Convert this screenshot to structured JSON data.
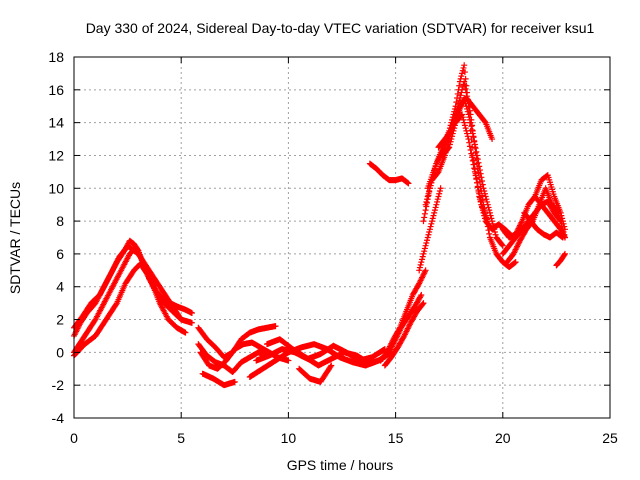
{
  "chart_data": {
    "type": "scatter",
    "title": "Day 330 of 2024, Sidereal Day-to-day VTEC variation (SDTVAR) for receiver ksu1",
    "xlabel": "GPS time / hours",
    "ylabel": "SDTVAR / TECUs",
    "xlim": [
      0,
      25
    ],
    "ylim": [
      -4,
      18
    ],
    "x_ticks": [
      0,
      5,
      10,
      15,
      20,
      25
    ],
    "y_ticks": [
      -4,
      -2,
      0,
      2,
      4,
      6,
      8,
      10,
      12,
      14,
      16,
      18
    ],
    "grid": true,
    "marker": "+",
    "series": [
      {
        "name": "SDTVAR",
        "color": "#ff0000",
        "tracks": [
          {
            "x": [
              0.0,
              0.3,
              0.6,
              1.0,
              1.4,
              1.8,
              2.1,
              2.4,
              2.6,
              2.8,
              3.0,
              3.2,
              3.5,
              3.8,
              4.1,
              4.5,
              4.8,
              5.2,
              5.5
            ],
            "y": [
              1.0,
              1.8,
              2.4,
              3.0,
              4.0,
              5.0,
              5.8,
              6.3,
              6.8,
              6.6,
              6.2,
              5.5,
              4.6,
              3.8,
              3.3,
              3.0,
              2.8,
              2.6,
              2.4
            ]
          },
          {
            "x": [
              0.0,
              0.3,
              0.6,
              1.0,
              1.4,
              1.8,
              2.2,
              2.6,
              2.9,
              3.2,
              3.5,
              3.8,
              4.2,
              4.6,
              5.0,
              5.5
            ],
            "y": [
              0.0,
              0.6,
              1.2,
              2.0,
              3.0,
              4.0,
              5.0,
              6.0,
              6.4,
              5.5,
              4.5,
              3.8,
              3.0,
              2.5,
              2.0,
              1.8
            ]
          },
          {
            "x": [
              0.0,
              0.5,
              1.0,
              1.5,
              2.0,
              2.4,
              2.8,
              3.1,
              3.4,
              3.7,
              4.0,
              4.4,
              4.8,
              5.2
            ],
            "y": [
              -0.2,
              0.5,
              1.0,
              2.0,
              3.0,
              4.2,
              5.0,
              5.4,
              4.8,
              4.0,
              3.0,
              2.0,
              1.5,
              1.2
            ]
          },
          {
            "x": [
              0.0,
              0.4,
              0.8,
              1.2,
              1.6,
              2.0,
              2.5,
              3.0,
              3.5,
              4.0,
              4.5,
              5.0
            ],
            "y": [
              1.5,
              2.2,
              3.0,
              3.5,
              4.5,
              5.5,
              6.5,
              6.0,
              5.0,
              4.0,
              3.0,
              2.0
            ]
          },
          {
            "x": [
              5.8,
              6.2,
              6.6,
              7.0,
              7.4,
              7.8,
              8.2,
              8.6,
              9.0,
              9.4
            ],
            "y": [
              1.5,
              0.8,
              0.3,
              -0.3,
              0.0,
              0.8,
              1.2,
              1.4,
              1.5,
              1.6
            ]
          },
          {
            "x": [
              5.8,
              6.2,
              6.6,
              7.0,
              7.4,
              7.8,
              8.2,
              8.6,
              9.0
            ],
            "y": [
              0.5,
              -0.2,
              -0.6,
              -0.8,
              -1.2,
              -0.6,
              -0.3,
              0.0,
              -0.2
            ]
          },
          {
            "x": [
              5.9,
              6.3,
              6.7,
              7.1,
              7.5,
              7.9,
              8.3,
              8.7,
              9.1,
              9.5,
              10.0
            ],
            "y": [
              0.0,
              -0.8,
              -1.0,
              -0.5,
              0.2,
              0.5,
              0.6,
              0.3,
              0.0,
              -0.3,
              -0.5
            ]
          },
          {
            "x": [
              6.0,
              6.5,
              7.0,
              7.5
            ],
            "y": [
              -1.3,
              -1.6,
              -2.0,
              -1.8
            ]
          },
          {
            "x": [
              8.2,
              8.8,
              9.4,
              10.0,
              10.6,
              11.2,
              11.8,
              12.4,
              13.0,
              13.6,
              14.2,
              14.8
            ],
            "y": [
              -1.5,
              -1.0,
              -0.5,
              0.0,
              0.3,
              0.5,
              0.2,
              -0.3,
              -0.6,
              -0.8,
              -0.5,
              0.0
            ]
          },
          {
            "x": [
              8.5,
              9.1,
              9.7,
              10.3,
              10.9,
              11.5,
              12.1,
              12.7,
              13.3,
              13.9,
              14.5
            ],
            "y": [
              -0.5,
              -0.2,
              0.2,
              0.0,
              -0.4,
              -0.1,
              0.4,
              0.0,
              -0.5,
              -0.3,
              0.2
            ]
          },
          {
            "x": [
              9.0,
              9.6,
              10.2,
              10.8,
              11.4,
              12.0,
              12.6,
              13.2,
              13.8,
              14.4
            ],
            "y": [
              0.5,
              0.8,
              0.2,
              -0.3,
              -0.8,
              -0.4,
              0.0,
              -0.2,
              -0.7,
              -0.4
            ]
          },
          {
            "x": [
              10.5,
              11.0,
              11.5,
              12.0
            ],
            "y": [
              -1.0,
              -1.6,
              -1.8,
              -0.8
            ]
          },
          {
            "x": [
              14.3,
              14.6,
              14.9,
              15.2,
              15.5,
              15.8,
              16.1,
              16.4
            ],
            "y": [
              -0.5,
              0.0,
              0.8,
              1.5,
              2.5,
              3.5,
              4.2,
              5.0
            ]
          },
          {
            "x": [
              14.5,
              14.8,
              15.1,
              15.4,
              15.7,
              16.0,
              16.3
            ],
            "y": [
              -0.8,
              -0.3,
              0.3,
              1.0,
              1.8,
              2.5,
              3.0
            ]
          },
          {
            "x": [
              14.7,
              15.0,
              15.3,
              15.6,
              15.9,
              16.2
            ],
            "y": [
              0.0,
              0.8,
              1.6,
              2.2,
              2.8,
              3.5
            ]
          },
          {
            "x": [
              13.8,
              14.1,
              14.4,
              14.7,
              15.0,
              15.3,
              15.6
            ],
            "y": [
              11.5,
              11.2,
              10.8,
              10.5,
              10.5,
              10.6,
              10.3
            ]
          },
          {
            "x": [
              16.1,
              16.3,
              16.5,
              16.7,
              16.9,
              17.1
            ],
            "y": [
              5.0,
              6.0,
              7.0,
              8.0,
              9.0,
              10.0
            ]
          },
          {
            "x": [
              16.3,
              16.6,
              16.9,
              17.2,
              17.5,
              17.8,
              18.0,
              18.2,
              18.4,
              18.6,
              18.9,
              19.2,
              19.5,
              19.8,
              20.1,
              20.5
            ],
            "y": [
              8.0,
              10.0,
              11.5,
              12.5,
              13.5,
              15.0,
              16.5,
              17.5,
              15.0,
              12.0,
              9.5,
              8.0,
              7.5,
              7.8,
              7.5,
              7.0
            ]
          },
          {
            "x": [
              16.4,
              16.7,
              17.0,
              17.3,
              17.6,
              17.9,
              18.2,
              18.5,
              18.8,
              19.1,
              19.4,
              19.7,
              20.0,
              20.3,
              20.6
            ],
            "y": [
              9.0,
              10.5,
              11.0,
              12.0,
              13.5,
              15.0,
              16.5,
              14.5,
              11.5,
              9.0,
              7.0,
              6.0,
              5.5,
              5.2,
              5.5
            ]
          },
          {
            "x": [
              16.5,
              16.9,
              17.3,
              17.7,
              18.0,
              18.3,
              18.6,
              18.9,
              19.2,
              19.5
            ],
            "y": [
              10.0,
              11.5,
              12.5,
              14.0,
              15.0,
              15.5,
              15.0,
              14.5,
              14.0,
              13.0
            ]
          },
          {
            "x": [
              17.0,
              17.3,
              17.6,
              17.9,
              18.2,
              18.5,
              18.8,
              19.1,
              19.4,
              19.7,
              20.0
            ],
            "y": [
              12.5,
              13.0,
              13.5,
              14.5,
              15.5,
              14.0,
              12.0,
              10.0,
              8.5,
              7.0,
              6.5
            ]
          },
          {
            "x": [
              17.2,
              17.5,
              17.8,
              18.1,
              18.4,
              18.7,
              19.0,
              19.3
            ],
            "y": [
              12.0,
              12.5,
              14.0,
              14.5,
              13.0,
              11.0,
              9.0,
              8.0
            ]
          },
          {
            "x": [
              20.0,
              20.3,
              20.6,
              20.9,
              21.2,
              21.5,
              21.8,
              22.1,
              22.4,
              22.7,
              22.9
            ],
            "y": [
              6.0,
              6.5,
              7.0,
              7.5,
              8.0,
              8.5,
              9.0,
              8.5,
              8.0,
              7.5,
              7.0
            ]
          },
          {
            "x": [
              20.0,
              20.3,
              20.6,
              20.9,
              21.2,
              21.5,
              21.8,
              22.1,
              22.4,
              22.7
            ],
            "y": [
              7.5,
              7.0,
              7.2,
              8.0,
              9.0,
              9.5,
              9.0,
              9.2,
              8.5,
              8.0
            ]
          },
          {
            "x": [
              20.2,
              20.5,
              20.8,
              21.1,
              21.4,
              21.7,
              22.0,
              22.3,
              22.6,
              22.9
            ],
            "y": [
              5.5,
              6.0,
              6.8,
              7.5,
              8.0,
              9.0,
              10.0,
              9.0,
              8.5,
              7.0
            ]
          },
          {
            "x": [
              21.5,
              21.8,
              22.1,
              22.4,
              22.7,
              22.9
            ],
            "y": [
              9.5,
              10.5,
              10.8,
              9.5,
              8.5,
              7.5
            ]
          },
          {
            "x": [
              21.0,
              21.3,
              21.6,
              21.9,
              22.2,
              22.5,
              22.8
            ],
            "y": [
              8.5,
              8.0,
              7.5,
              7.2,
              7.0,
              7.3,
              7.0
            ]
          },
          {
            "x": [
              22.5,
              22.7,
              22.9
            ],
            "y": [
              5.3,
              5.6,
              6.0
            ]
          }
        ]
      }
    ]
  }
}
